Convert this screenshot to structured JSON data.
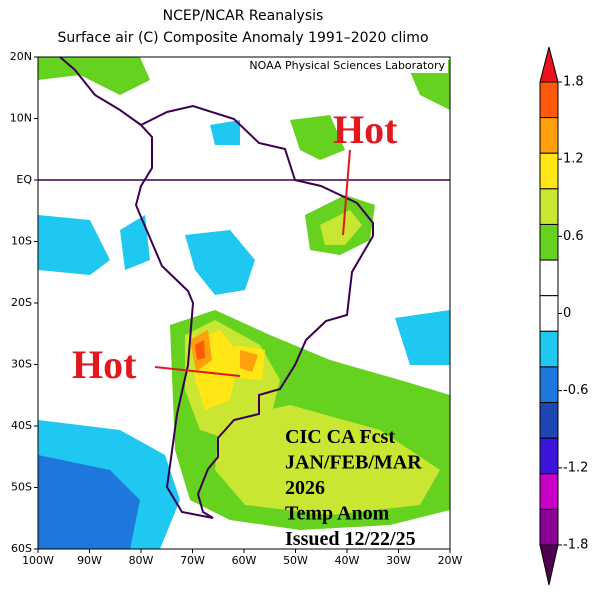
{
  "header": {
    "title": "NCEP/NCAR Reanalysis",
    "subtitle": "Surface air (C) Composite Anomaly 1991–2020 climo",
    "credit": "NOAA Physical Sciences Laboratory"
  },
  "map": {
    "lat_labels": [
      "20N",
      "10N",
      "EQ",
      "10S",
      "20S",
      "30S",
      "40S",
      "50S",
      "60S"
    ],
    "lon_labels": [
      "100W",
      "90W",
      "80W",
      "70W",
      "60W",
      "50W",
      "40W",
      "30W",
      "20W"
    ]
  },
  "annotations": {
    "hot_north": "Hot",
    "hot_south": "Hot",
    "forecast_lines": [
      "CIC CA Fcst",
      "JAN/FEB/MAR",
      "2026",
      "Temp Anom",
      "Issued 12/22/25"
    ]
  },
  "colorbar": {
    "ticks": [
      1.8,
      1.2,
      0.6,
      0,
      -0.6,
      -1.2,
      -1.8
    ],
    "colors": [
      "#e8141e",
      "#ff5a0a",
      "#ffa00a",
      "#ffe614",
      "#c8e632",
      "#64d21e",
      "#ffffff",
      "#ffffff",
      "#1ec8f0",
      "#1e78dc",
      "#1e46b4",
      "#3c14dc",
      "#c800c8",
      "#8c0096",
      "#500050"
    ]
  }
}
